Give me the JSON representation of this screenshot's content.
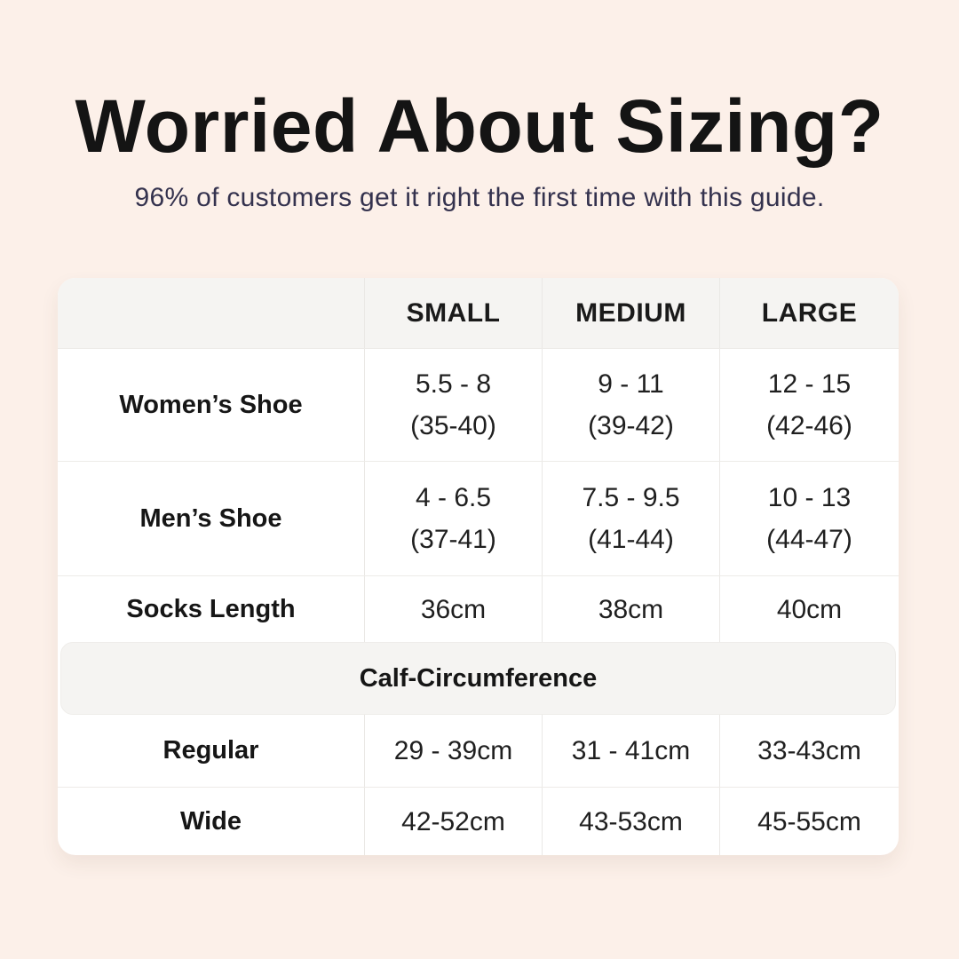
{
  "colors": {
    "page_background": "#FCF0E9",
    "table_background": "#FFFFFF",
    "band_background": "#F5F4F2",
    "divider": "#EAE8E5",
    "title_text": "#141414",
    "subtitle_text": "#34324E",
    "table_text": "#1C1C1C"
  },
  "header": {
    "title": "Worried About Sizing?",
    "subtitle": "96% of customers get it right the first time with this guide."
  },
  "table": {
    "col_headers": [
      "",
      "SMALL",
      "MEDIUM",
      "LARGE"
    ],
    "rows": [
      {
        "label": "Women’s Shoe",
        "small": "5.5 - 8\n(35-40)",
        "medium": "9 - 11\n(39-42)",
        "large": "12 - 15\n(42-46)"
      },
      {
        "label": "Men’s Shoe",
        "small": "4 - 6.5\n(37-41)",
        "medium": "7.5 - 9.5\n(41-44)",
        "large": "10 - 13\n(44-47)"
      },
      {
        "label": "Socks Length",
        "small": "36cm",
        "medium": "38cm",
        "large": "40cm"
      }
    ],
    "section_header": "Calf-Circumference",
    "section_rows": [
      {
        "label": "Regular",
        "small": "29 - 39cm",
        "medium": "31 - 41cm",
        "large": "33-43cm"
      },
      {
        "label": "Wide",
        "small": "42-52cm",
        "medium": "43-53cm",
        "large": "45-55cm"
      }
    ]
  },
  "chart_data": {
    "type": "table",
    "title": "Worried About Sizing?",
    "subtitle": "96% of customers get it right the first time with this guide.",
    "columns": [
      "",
      "SMALL",
      "MEDIUM",
      "LARGE"
    ],
    "rows": [
      [
        "Women’s Shoe",
        "5.5 - 8 (35-40)",
        "9 - 11 (39-42)",
        "12 - 15 (42-46)"
      ],
      [
        "Men’s Shoe",
        "4 - 6.5 (37-41)",
        "7.5 - 9.5 (41-44)",
        "10 - 13 (44-47)"
      ],
      [
        "Socks Length",
        "36cm",
        "38cm",
        "40cm"
      ],
      [
        "Calf-Circumference",
        "",
        "",
        ""
      ],
      [
        "Regular",
        "29 - 39cm",
        "31 - 41cm",
        "33-43cm"
      ],
      [
        "Wide",
        "42-52cm",
        "43-53cm",
        "45-55cm"
      ]
    ],
    "layout": {
      "section_header_row_index": 3,
      "section_header_spans_all_columns": true
    }
  }
}
